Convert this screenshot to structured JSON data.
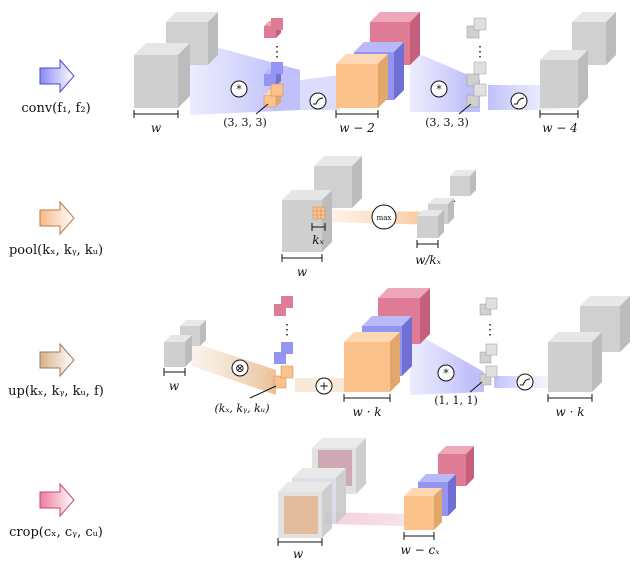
{
  "operations": {
    "conv": {
      "label": "conv(f₁, f₂)",
      "input_width": "w",
      "kernel_1": "(3, 3, 3)",
      "mid_width": "w − 2",
      "kernel_2": "(3, 3, 3)",
      "output_width": "w − 4",
      "op_symbol": "*",
      "dots": "⋮"
    },
    "pool": {
      "label": "pool(kₓ, kᵧ, kᵤ)",
      "input_width": "w",
      "kernel": "kₓ",
      "op_symbol": "max",
      "output_width": "w/kₓ"
    },
    "up": {
      "label": "up(kₓ, kᵧ, kᵤ, f)",
      "input_width": "w",
      "kernel_1": "(kₓ, kᵧ, kᵤ)",
      "op_symbol_1": "⊗",
      "add_symbol": "+",
      "mid_width": "w · k",
      "kernel_2": "(1, 1, 1)",
      "op_symbol_2": "*",
      "output_width": "w · k",
      "dots": "⋮"
    },
    "crop": {
      "label": "crop(cₓ, cᵧ, cᵤ)",
      "input_width": "w",
      "output_width": "w − cₓ"
    }
  },
  "colors": {
    "conv_arrow": "#8a8af5",
    "pool_arrow": "#f7b888",
    "up_arrow": "#e8cbb0",
    "crop_arrow": "#ec8fa8",
    "grey": "#cfcfcf",
    "orange": "#fbc28b",
    "blue": "#9494f2",
    "pink": "#e07b96"
  }
}
